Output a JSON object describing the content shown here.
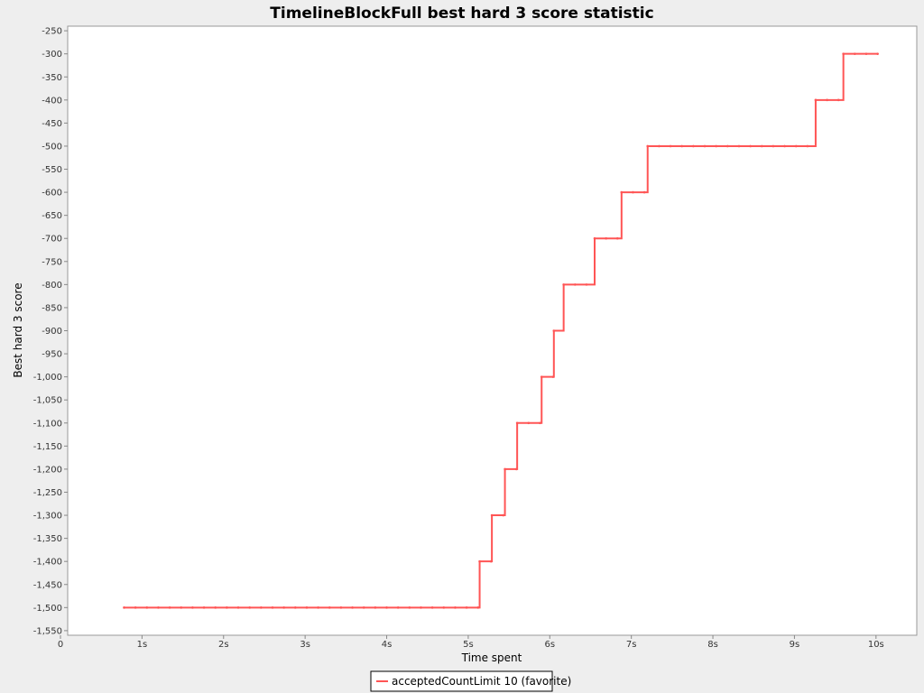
{
  "chart_data": {
    "type": "line",
    "title": "TimelineBlockFull best hard 3 score statistic",
    "xlabel": "Time spent",
    "ylabel": "Best hard 3 score",
    "xlim": [
      0,
      10.5
    ],
    "ylim": [
      -1560,
      -240
    ],
    "x_ticks": [
      {
        "value": 0,
        "label": "0"
      },
      {
        "value": 1,
        "label": "1s"
      },
      {
        "value": 2,
        "label": "2s"
      },
      {
        "value": 3,
        "label": "3s"
      },
      {
        "value": 4,
        "label": "4s"
      },
      {
        "value": 5,
        "label": "5s"
      },
      {
        "value": 6,
        "label": "6s"
      },
      {
        "value": 7,
        "label": "7s"
      },
      {
        "value": 8,
        "label": "8s"
      },
      {
        "value": 9,
        "label": "9s"
      },
      {
        "value": 10,
        "label": "10s"
      }
    ],
    "y_ticks": [
      {
        "value": -250,
        "label": "-250"
      },
      {
        "value": -300,
        "label": "-300"
      },
      {
        "value": -350,
        "label": "-350"
      },
      {
        "value": -400,
        "label": "-400"
      },
      {
        "value": -450,
        "label": "-450"
      },
      {
        "value": -500,
        "label": "-500"
      },
      {
        "value": -550,
        "label": "-550"
      },
      {
        "value": -600,
        "label": "-600"
      },
      {
        "value": -650,
        "label": "-650"
      },
      {
        "value": -700,
        "label": "-700"
      },
      {
        "value": -750,
        "label": "-750"
      },
      {
        "value": -800,
        "label": "-800"
      },
      {
        "value": -850,
        "label": "-850"
      },
      {
        "value": -900,
        "label": "-900"
      },
      {
        "value": -950,
        "label": "-950"
      },
      {
        "value": -1000,
        "label": "-1,000"
      },
      {
        "value": -1050,
        "label": "-1,050"
      },
      {
        "value": -1100,
        "label": "-1,100"
      },
      {
        "value": -1150,
        "label": "-1,150"
      },
      {
        "value": -1200,
        "label": "-1,200"
      },
      {
        "value": -1250,
        "label": "-1,250"
      },
      {
        "value": -1300,
        "label": "-1,300"
      },
      {
        "value": -1350,
        "label": "-1,350"
      },
      {
        "value": -1400,
        "label": "-1,400"
      },
      {
        "value": -1450,
        "label": "-1,450"
      },
      {
        "value": -1500,
        "label": "-1,500"
      },
      {
        "value": -1550,
        "label": "-1,550"
      }
    ],
    "grid": false,
    "legend_position": "bottom-center",
    "series": [
      {
        "name": "acceptedCountLimit 10 (favorite)",
        "color": "#ff5555",
        "step": true,
        "x": [
          0.78,
          5.14,
          5.29,
          5.45,
          5.6,
          5.9,
          6.05,
          6.17,
          6.55,
          6.88,
          7.2,
          9.26,
          9.6,
          10.02
        ],
        "y": [
          -1500,
          -1400,
          -1300,
          -1200,
          -1100,
          -1000,
          -900,
          -800,
          -700,
          -600,
          -500,
          -400,
          -300,
          -300
        ]
      }
    ]
  }
}
